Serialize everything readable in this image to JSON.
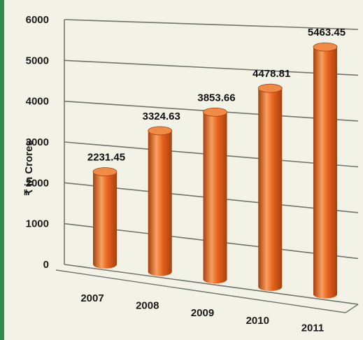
{
  "chart_data": {
    "type": "bar",
    "style": "3d-cylinder",
    "categories": [
      "2007",
      "2008",
      "2009",
      "2010",
      "2011"
    ],
    "values": [
      2231.45,
      3324.63,
      3853.66,
      4478.81,
      5463.45
    ],
    "value_labels": [
      "2231.45",
      "3324.63",
      "3853.66",
      "4478.81",
      "5463.45"
    ],
    "ylabel": "₹ in Crores",
    "xlabel": "",
    "yticks": [
      "0",
      "1000",
      "2000",
      "3000",
      "4000",
      "5000",
      "6000"
    ],
    "ylim": [
      0,
      6000
    ],
    "grid": true,
    "legend": "none",
    "colors": {
      "bar": "#e8641e",
      "bar_dark": "#a8400c",
      "bar_light": "#f7a060",
      "top": "#f08a44",
      "grid": "#6f756c",
      "background": "#f2f3e6",
      "accent_strip": "#2e8b4b"
    }
  }
}
